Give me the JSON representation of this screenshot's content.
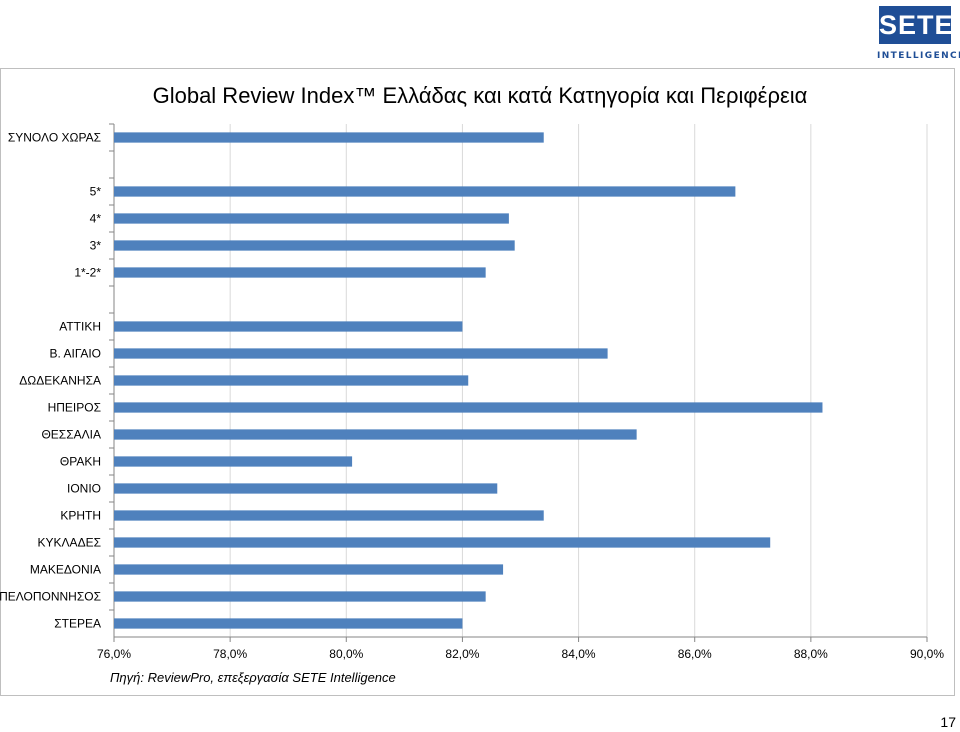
{
  "logo": {
    "brand": "SETE",
    "sub": "INTELLIGENCE"
  },
  "page_number": "17",
  "source_note": "Πηγή: ReviewPro, επεξεργασία SETE Intelligence",
  "colors": {
    "bar": "#4f81bd",
    "logo": "#1f4e96",
    "grid": "#d9d9d9"
  },
  "chart_data": {
    "type": "bar",
    "orientation": "horizontal",
    "title": "Global Review Index™ Ελλάδας και κατά Κατηγορία και Περιφέρεια",
    "xlabel": "",
    "ylabel": "",
    "xlim": [
      76,
      90
    ],
    "grid": true,
    "ticks": [
      "76,0%",
      "78,0%",
      "80,0%",
      "82,0%",
      "84,0%",
      "86,0%",
      "88,0%",
      "90,0%"
    ],
    "tick_values": [
      76,
      78,
      80,
      82,
      84,
      86,
      88,
      90
    ],
    "categories": [
      "ΣΥΝΟΛΟ ΧΩΡΑΣ",
      "",
      "5*",
      "4*",
      "3*",
      "1*-2*",
      "",
      "ΑΤΤΙΚΗ",
      "Β. ΑΙΓΑΙΟ",
      "ΔΩΔΕΚΑΝΗΣΑ",
      "ΗΠΕΙΡΟΣ",
      "ΘΕΣΣΑΛΙΑ",
      "ΘΡΑΚΗ",
      "ΙΟΝΙΟ",
      "ΚΡΗΤΗ",
      "ΚΥΚΛΑΔΕΣ",
      "ΜΑΚΕΔΟΝΙΑ",
      "ΠΕΛΟΠΟΝΝΗΣΟΣ",
      "ΣΤΕΡΕΑ"
    ],
    "values": [
      83.4,
      null,
      86.7,
      82.8,
      82.9,
      82.4,
      null,
      82.0,
      84.5,
      82.1,
      88.2,
      85.0,
      80.1,
      82.6,
      83.4,
      87.3,
      82.7,
      82.4,
      82.0
    ]
  }
}
